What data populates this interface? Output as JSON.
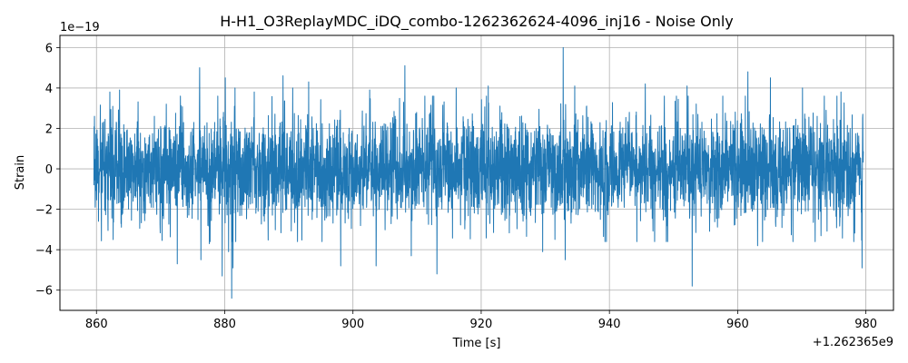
{
  "chart_data": {
    "type": "line",
    "title": "H-H1_O3ReplayMDC_iDQ_combo-1262362624-4096_inj16 - Noise Only",
    "xlabel": "Time [s]",
    "ylabel": "Strain",
    "x_offset_label": "+1.262365e9",
    "y_scale_label": "1e−19",
    "x_ticks": [
      860,
      880,
      900,
      920,
      940,
      960,
      980
    ],
    "x_tick_labels": [
      "860",
      "880",
      "900",
      "920",
      "940",
      "960",
      "980"
    ],
    "y_ticks": [
      -6,
      -4,
      -2,
      0,
      2,
      4,
      6
    ],
    "y_tick_labels": [
      "−6",
      "−4",
      "−2",
      "0",
      "2",
      "4",
      "6"
    ],
    "xlim": [
      854.3,
      984.3
    ],
    "ylim": [
      -7.0,
      6.6
    ],
    "grid": true,
    "color": "#1f77b4",
    "series": [
      {
        "x_range": [
          859.6,
          979.6
        ],
        "sigma": 1.0,
        "peaks": [
          {
            "x": 859.7,
            "y": 2.6
          },
          {
            "x": 859.8,
            "y": -1.9
          },
          {
            "x": 862.1,
            "y": 3.8
          },
          {
            "x": 862.6,
            "y": -3.5
          },
          {
            "x": 863.6,
            "y": 3.9
          },
          {
            "x": 870.9,
            "y": 3.2
          },
          {
            "x": 872.6,
            "y": -4.7
          },
          {
            "x": 873.1,
            "y": 3.6
          },
          {
            "x": 876.1,
            "y": 5.0
          },
          {
            "x": 876.3,
            "y": -4.5
          },
          {
            "x": 877.6,
            "y": -3.7
          },
          {
            "x": 879.6,
            "y": -5.3
          },
          {
            "x": 880.1,
            "y": 4.5
          },
          {
            "x": 880.6,
            "y": -4.1
          },
          {
            "x": 881.1,
            "y": -6.4
          },
          {
            "x": 881.3,
            "y": -4.9
          },
          {
            "x": 881.6,
            "y": 4.0
          },
          {
            "x": 884.6,
            "y": 3.8
          },
          {
            "x": 889.1,
            "y": 4.6
          },
          {
            "x": 890.6,
            "y": 4.0
          },
          {
            "x": 893.1,
            "y": 4.3
          },
          {
            "x": 898.1,
            "y": -4.8
          },
          {
            "x": 902.6,
            "y": 3.9
          },
          {
            "x": 903.6,
            "y": -4.8
          },
          {
            "x": 908.1,
            "y": 5.1
          },
          {
            "x": 909.1,
            "y": -4.3
          },
          {
            "x": 913.1,
            "y": -5.2
          },
          {
            "x": 916.1,
            "y": 4.0
          },
          {
            "x": 921.1,
            "y": 4.1
          },
          {
            "x": 929.6,
            "y": -4.1
          },
          {
            "x": 932.8,
            "y": 6.0
          },
          {
            "x": 933.1,
            "y": -4.5
          },
          {
            "x": 934.6,
            "y": 4.1
          },
          {
            "x": 945.6,
            "y": 4.2
          },
          {
            "x": 952.1,
            "y": 4.1
          },
          {
            "x": 952.9,
            "y": -5.8
          },
          {
            "x": 961.6,
            "y": 4.8
          },
          {
            "x": 963.1,
            "y": -3.8
          },
          {
            "x": 965.1,
            "y": 4.5
          },
          {
            "x": 970.1,
            "y": 4.0
          },
          {
            "x": 976.1,
            "y": 3.8
          },
          {
            "x": 978.1,
            "y": -3.6
          },
          {
            "x": 979.4,
            "y": -4.9
          },
          {
            "x": 979.5,
            "y": 2.7
          }
        ]
      }
    ]
  }
}
